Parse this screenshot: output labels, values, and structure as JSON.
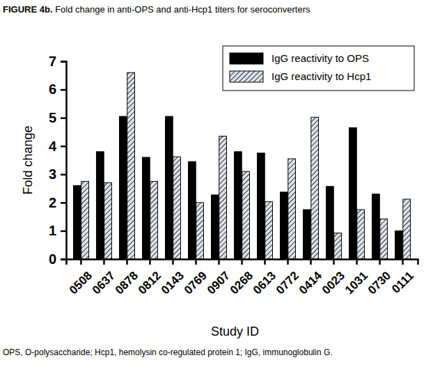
{
  "chart_data": {
    "type": "bar",
    "title": "FIGURE 4b. Fold change in anti-OPS and anti-Hcp1 titers for seroconverters",
    "x_label": "Study ID",
    "y_label": "Fold change",
    "annotations": [
      "OPS, O-polysaccharide; Hcp1, hemolysin co-regulated protein 1; IgG, immunoglobulin G."
    ],
    "categories": [
      "0508",
      "0637",
      "0878",
      "0812",
      "0143",
      "0769",
      "0907",
      "0268",
      "0613",
      "0772",
      "0414",
      "0023",
      "1031",
      "0730",
      "0111"
    ],
    "series": [
      {
        "name": "IgG reactivity to OPS",
        "color": "#000000",
        "values": [
          2.6,
          3.8,
          5.05,
          3.6,
          5.05,
          3.45,
          2.27,
          3.8,
          3.75,
          2.37,
          1.75,
          2.57,
          4.65,
          2.3,
          1.0
        ]
      },
      {
        "name": "IgG reactivity to Hcp1",
        "color": "#dde3ec",
        "values": [
          2.75,
          2.7,
          6.6,
          2.75,
          3.62,
          2.0,
          4.35,
          3.1,
          2.03,
          3.55,
          5.02,
          0.92,
          1.75,
          1.42,
          2.12
        ]
      }
    ],
    "ylim": [
      0,
      7
    ],
    "yticks": [
      0,
      1,
      2,
      3,
      4,
      5,
      6,
      7
    ],
    "grid": false,
    "legend": "top-right"
  }
}
